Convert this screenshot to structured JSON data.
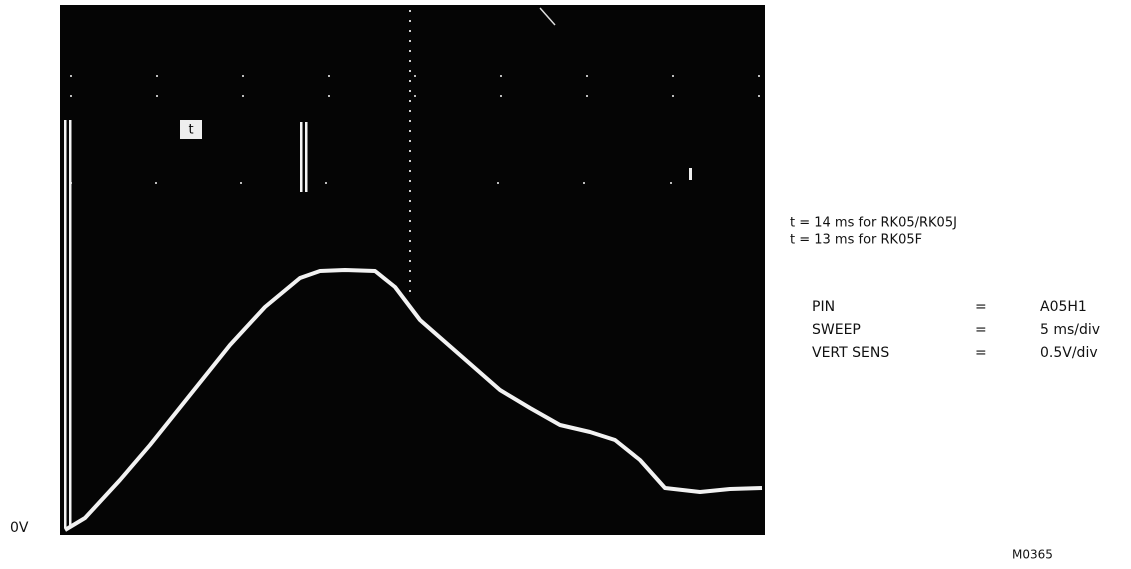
{
  "screen": {
    "baseline_label": "0V",
    "marker_label": "t"
  },
  "notes": [
    "t = 14 ms for RK05/RK05J",
    "t = 13 ms for RK05F"
  ],
  "settings": [
    [
      "PIN",
      "=",
      "A05H1"
    ],
    [
      "SWEEP",
      "=",
      "5 ms/div"
    ],
    [
      "VERT SENS",
      "=",
      "0.5V/div"
    ]
  ],
  "figure_id": "M0365"
}
